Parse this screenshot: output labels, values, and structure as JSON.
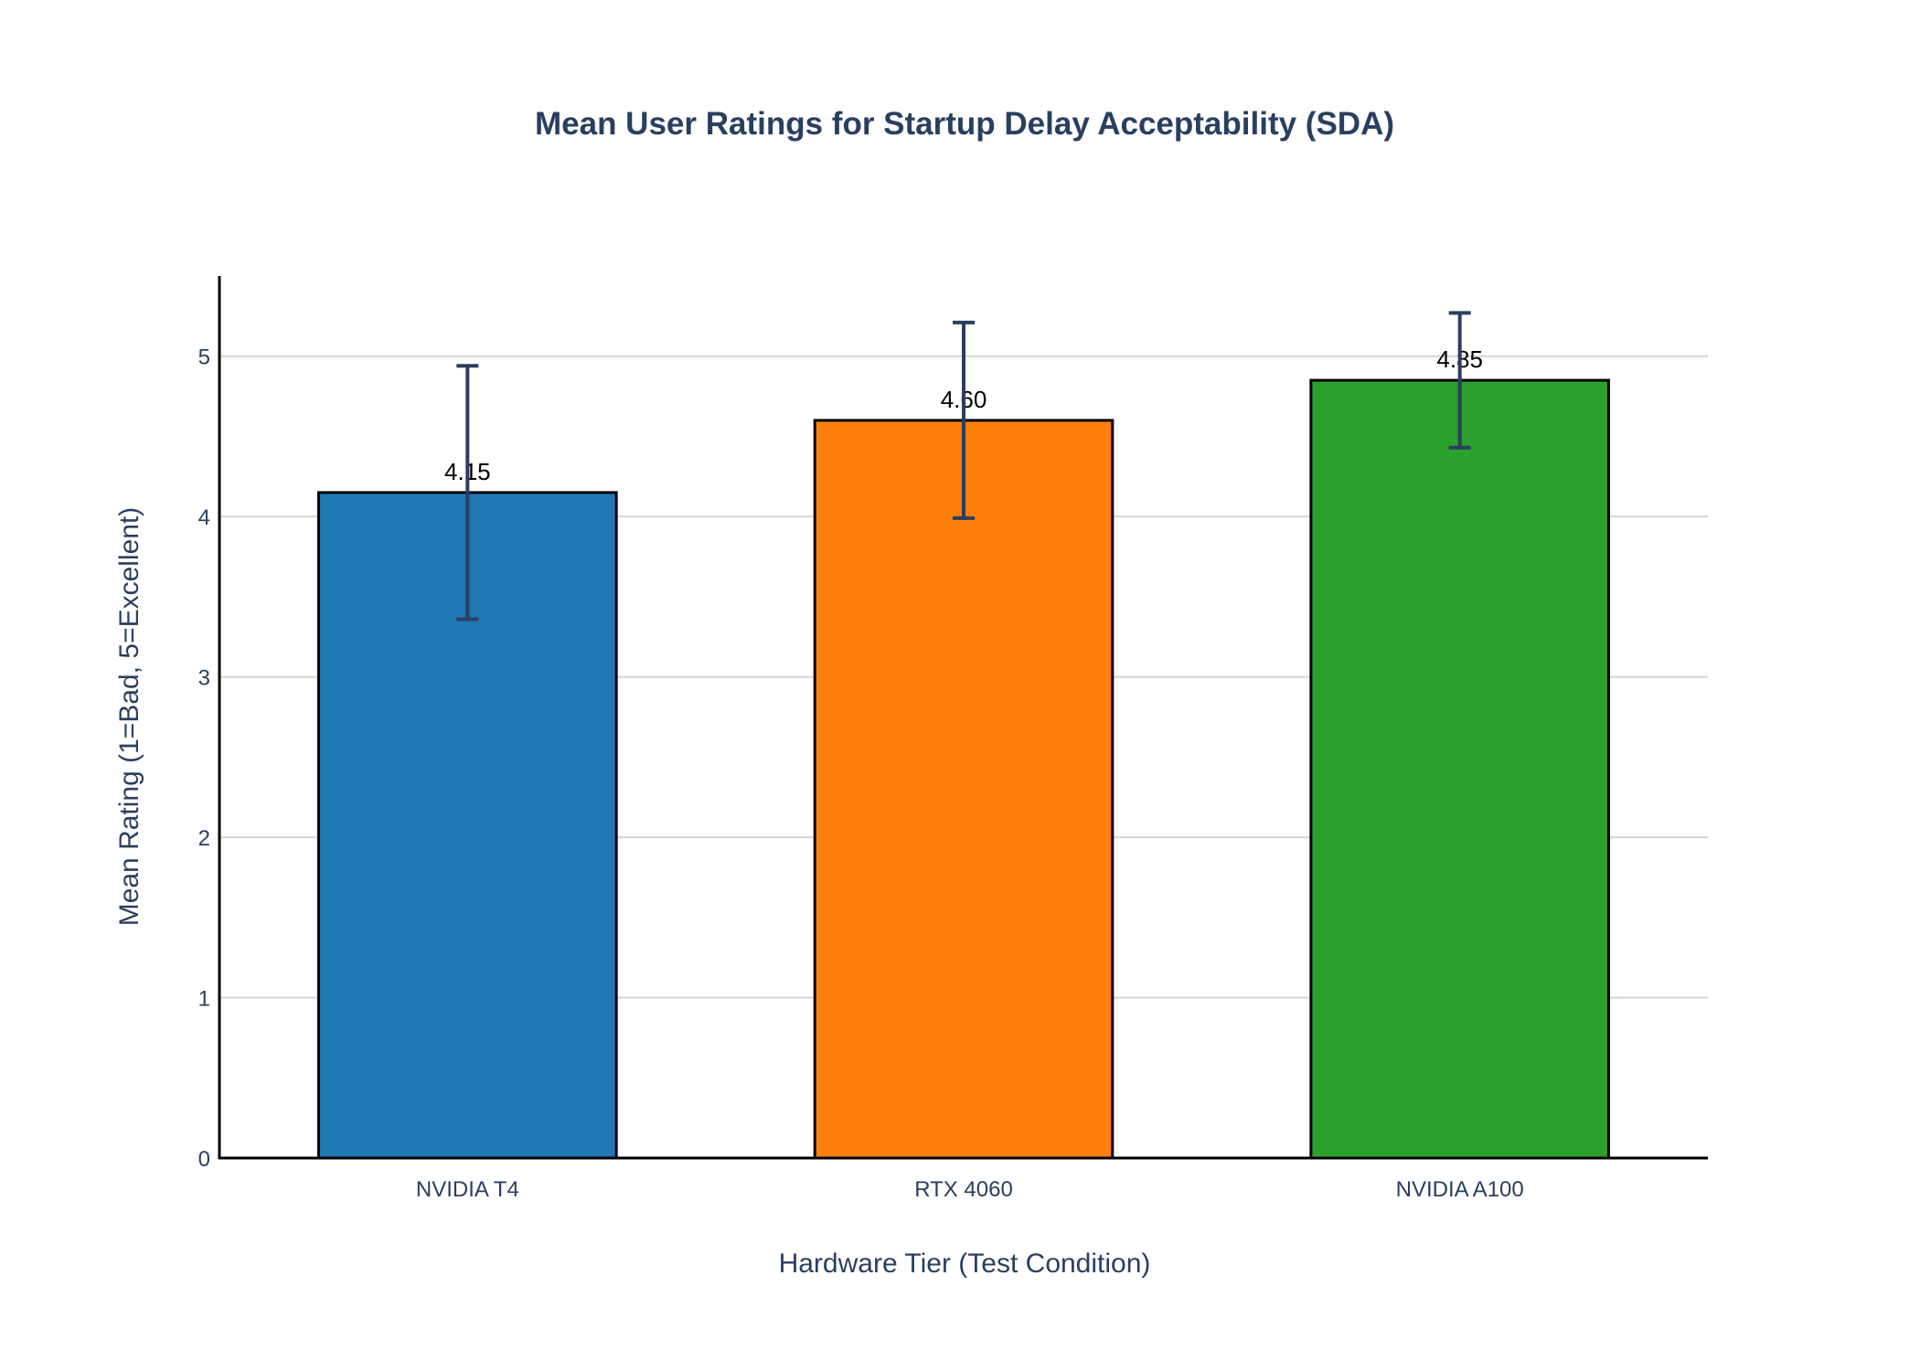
{
  "chart_data": {
    "type": "bar",
    "title": "Mean User Ratings for Startup Delay Acceptability (SDA)",
    "xlabel": "Hardware Tier (Test Condition)",
    "ylabel": "Mean Rating (1=Bad, 5=Excellent)",
    "categories": [
      "NVIDIA T4",
      "RTX 4060",
      "NVIDIA A100"
    ],
    "values": [
      4.15,
      4.6,
      4.85
    ],
    "value_labels": [
      "4.15",
      "4.60",
      "4.85"
    ],
    "error": [
      0.79,
      0.61,
      0.42
    ],
    "ylim": [
      0,
      5.5
    ],
    "yticks": [
      0,
      1,
      2,
      3,
      4,
      5
    ],
    "ytick_labels": [
      "0",
      "1",
      "2",
      "3",
      "4",
      "5"
    ],
    "grid": true,
    "legend": "none",
    "colors": [
      "#1f77b4",
      "#ff7f0e",
      "#2ca02c"
    ],
    "bar_outline_color": "#000000",
    "error_bar_color": "#2a3f5f"
  }
}
